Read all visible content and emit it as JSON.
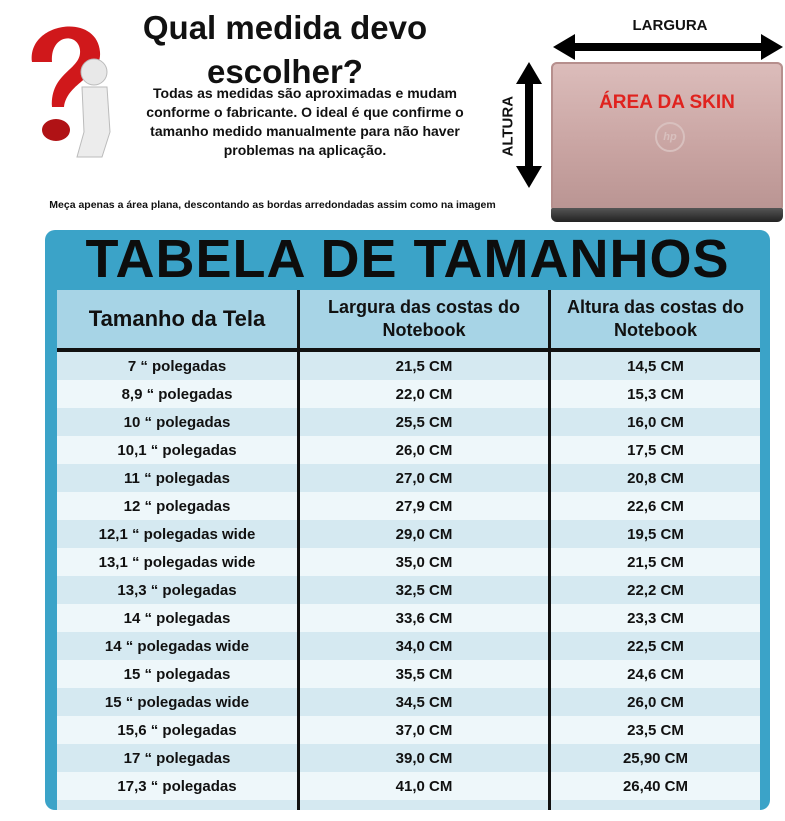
{
  "header": {
    "title": "Qual medida devo escolher?",
    "description": "Todas as medidas são aproximadas e mudam conforme o fabricante. O ideal é que confirme o tamanho medido manualmente para não haver problemas na aplicação.",
    "note": "Meça apenas a área plana, descontando as bordas arredondadas assim como na imagem"
  },
  "diagram": {
    "width_label": "LARGURA",
    "height_label": "ALTURA",
    "area_label": "ÁREA DA SKIN",
    "logo": "hp"
  },
  "table": {
    "title": "TABELA DE TAMANHOS",
    "columns": [
      "Tamanho da Tela",
      "Largura das costas do Notebook",
      "Altura das costas do Notebook"
    ],
    "rows": [
      [
        "7 “ polegadas",
        "21,5 CM",
        "14,5 CM"
      ],
      [
        "8,9 “ polegadas",
        "22,0 CM",
        "15,3 CM"
      ],
      [
        "10 “ polegadas",
        "25,5 CM",
        "16,0 CM"
      ],
      [
        "10,1 “ polegadas",
        "26,0 CM",
        "17,5 CM"
      ],
      [
        "11 “ polegadas",
        "27,0 CM",
        "20,8 CM"
      ],
      [
        "12 “ polegadas",
        "27,9 CM",
        "22,6 CM"
      ],
      [
        "12,1 “ polegadas wide",
        "29,0 CM",
        "19,5 CM"
      ],
      [
        "13,1 “ polegadas wide",
        "35,0 CM",
        "21,5 CM"
      ],
      [
        "13,3 “ polegadas",
        "32,5 CM",
        "22,2 CM"
      ],
      [
        "14 “ polegadas",
        "33,6 CM",
        "23,3 CM"
      ],
      [
        "14 “ polegadas wide",
        "34,0 CM",
        "22,5 CM"
      ],
      [
        "15 “ polegadas",
        "35,5 CM",
        "24,6 CM"
      ],
      [
        "15 “ polegadas wide",
        "34,5 CM",
        "26,0 CM"
      ],
      [
        "15,6 “ polegadas",
        "37,0 CM",
        "23,5 CM"
      ],
      [
        "17 “ polegadas",
        "39,0 CM",
        "25,90 CM"
      ],
      [
        "17,3 “ polegadas",
        "41,0 CM",
        "26,40 CM"
      ]
    ]
  },
  "colors": {
    "table_border": "#3ba3c8",
    "header_bg": "#a7d4e6",
    "skin_label": "#e0221e",
    "question_mark": "#d0181b"
  }
}
